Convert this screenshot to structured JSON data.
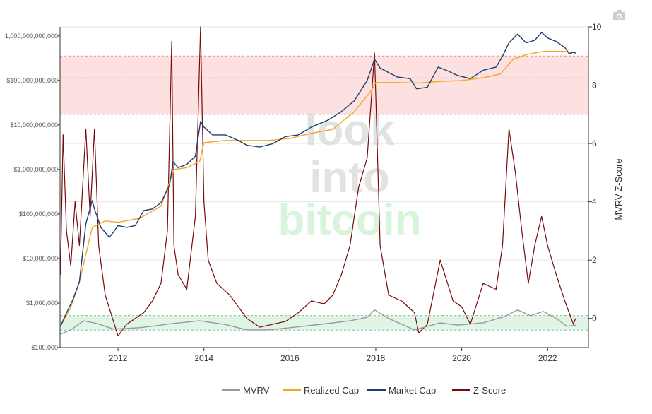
{
  "chart_data": {
    "type": "line",
    "title": "",
    "watermark": [
      "look",
      "into",
      "bitcoin"
    ],
    "left_axis": {
      "scale": "log",
      "unit": "USD",
      "ylim": [
        100000,
        1600000000000
      ],
      "ticks": [
        {
          "value": 100000,
          "label": "$100,000"
        },
        {
          "value": 1000000,
          "label": "$1,000,000"
        },
        {
          "value": 10000000,
          "label": "$10,000,000"
        },
        {
          "value": 100000000,
          "label": "$100,000,000"
        },
        {
          "value": 1000000000,
          "label": "$1,000,000,000"
        },
        {
          "value": 10000000000,
          "label": "$10,000,000,000"
        },
        {
          "value": 100000000000,
          "label": "$100,000,000,000"
        },
        {
          "value": 1000000000000,
          "label": "1,000,000,000,000"
        }
      ]
    },
    "right_axis": {
      "title": "MVRV Z-Score",
      "ylim": [
        -1,
        10
      ],
      "ticks": [
        {
          "value": 0,
          "label": "0"
        },
        {
          "value": 2,
          "label": "2"
        },
        {
          "value": 4,
          "label": "4"
        },
        {
          "value": 6,
          "label": "6"
        },
        {
          "value": 8,
          "label": "8"
        },
        {
          "value": 10,
          "label": "10"
        }
      ]
    },
    "x_axis": {
      "range": [
        2010.65,
        2022.95
      ],
      "ticks": [
        {
          "value": 2012,
          "label": "2012"
        },
        {
          "value": 2014,
          "label": "2014"
        },
        {
          "value": 2016,
          "label": "2016"
        },
        {
          "value": 2018,
          "label": "2018"
        },
        {
          "value": 2020,
          "label": "2020"
        },
        {
          "value": 2022,
          "label": "2022"
        }
      ]
    },
    "bands": [
      {
        "name": "overvalued",
        "z_from": 7,
        "z_to": 9,
        "color": "#fde0e0",
        "line_color": "#e88a8a",
        "mid_line": 8.25
      },
      {
        "name": "undervalued",
        "z_from": -0.4,
        "z_to": 0.1,
        "color": "#dff5e6",
        "line_color": "#7bc58f"
      }
    ],
    "legend": {
      "placement": "bottom-center",
      "items": [
        {
          "name": "MVRV",
          "color": "#999999"
        },
        {
          "name": "Realized Cap",
          "color": "#f5a623"
        },
        {
          "name": "Market Cap",
          "color": "#1c3f6e"
        },
        {
          "name": "Z-Score",
          "color": "#7a0a0a"
        }
      ]
    },
    "series": [
      {
        "name": "Market Cap",
        "axis": "left",
        "color": "#1c3f6e",
        "x": [
          2010.66,
          2010.8,
          2010.95,
          2011.1,
          2011.25,
          2011.4,
          2011.45,
          2011.6,
          2011.8,
          2011.9,
          2012.0,
          2012.2,
          2012.4,
          2012.6,
          2012.8,
          2013.0,
          2013.2,
          2013.28,
          2013.4,
          2013.6,
          2013.8,
          2013.92,
          2014.0,
          2014.2,
          2014.5,
          2014.8,
          2015.0,
          2015.3,
          2015.6,
          2015.9,
          2016.2,
          2016.5,
          2016.9,
          2017.2,
          2017.5,
          2017.8,
          2017.97,
          2018.1,
          2018.3,
          2018.5,
          2018.8,
          2018.95,
          2019.2,
          2019.45,
          2019.7,
          2019.9,
          2020.2,
          2020.5,
          2020.8,
          2020.95,
          2021.1,
          2021.3,
          2021.5,
          2021.7,
          2021.86,
          2022.0,
          2022.2,
          2022.4,
          2022.5,
          2022.6,
          2022.65
        ],
        "values": [
          300000,
          600000,
          1200000,
          3000000,
          60000000,
          200000000,
          130000000,
          50000000,
          30000000,
          40000000,
          55000000,
          50000000,
          55000000,
          120000000,
          130000000,
          180000000,
          450000000,
          1500000000,
          1100000000,
          1300000000,
          2000000000,
          12000000000,
          9000000000,
          6000000000,
          6000000000,
          4500000000,
          3500000000,
          3200000000,
          3800000000,
          5500000000,
          6000000000,
          9000000000,
          13000000000,
          20000000000,
          35000000000,
          100000000000,
          300000000000,
          190000000000,
          150000000000,
          120000000000,
          110000000000,
          65000000000,
          70000000000,
          200000000000,
          160000000000,
          130000000000,
          110000000000,
          170000000000,
          200000000000,
          350000000000,
          700000000000,
          1100000000000,
          700000000000,
          800000000000,
          1200000000000,
          900000000000,
          750000000000,
          550000000000,
          400000000000,
          430000000000,
          410000000000
        ]
      },
      {
        "name": "Realized Cap",
        "axis": "left",
        "color": "#f5a623",
        "x": [
          2010.66,
          2010.9,
          2011.1,
          2011.4,
          2011.7,
          2012.0,
          2012.5,
          2013.0,
          2013.3,
          2013.6,
          2013.9,
          2014.0,
          2014.5,
          2015.0,
          2015.5,
          2016.0,
          2016.5,
          2017.0,
          2017.5,
          2017.9,
          2018.0,
          2018.5,
          2019.0,
          2019.5,
          2020.0,
          2020.5,
          2020.9,
          2021.2,
          2021.5,
          2021.9,
          2022.1,
          2022.4,
          2022.5,
          2022.65
        ],
        "values": [
          300000,
          800000,
          3000000,
          50000000,
          70000000,
          65000000,
          80000000,
          150000000,
          1000000000,
          1100000000,
          1500000000,
          4000000000,
          4500000000,
          4500000000,
          4500000000,
          5000000000,
          6500000000,
          8000000000,
          20000000000,
          60000000000,
          90000000000,
          90000000000,
          88000000000,
          95000000000,
          100000000000,
          115000000000,
          140000000000,
          300000000000,
          380000000000,
          450000000000,
          450000000000,
          450000000000,
          430000000000,
          420000000000
        ]
      },
      {
        "name": "MVRV",
        "axis": "left",
        "color": "#999999",
        "x": [
          2010.66,
          2010.9,
          2011.2,
          2011.5,
          2011.9,
          2012.5,
          2013.0,
          2013.3,
          2013.9,
          2014.5,
          2015.0,
          2015.5,
          2016.0,
          2016.8,
          2017.4,
          2017.8,
          2017.97,
          2018.3,
          2018.9,
          2019.5,
          2019.9,
          2020.5,
          2021.0,
          2021.3,
          2021.6,
          2021.9,
          2022.2,
          2022.45,
          2022.65
        ],
        "values": [
          200000,
          250000,
          400000,
          350000,
          260000,
          280000,
          320000,
          350000,
          400000,
          330000,
          250000,
          250000,
          280000,
          340000,
          400000,
          480000,
          700000,
          450000,
          250000,
          360000,
          320000,
          360000,
          500000,
          700000,
          520000,
          650000,
          450000,
          300000,
          320000
        ]
      },
      {
        "name": "Z-Score",
        "axis": "right",
        "color": "#7a0a0a",
        "x": [
          2010.66,
          2010.72,
          2010.8,
          2010.9,
          2011.0,
          2011.1,
          2011.25,
          2011.35,
          2011.45,
          2011.55,
          2011.7,
          2011.85,
          2012.0,
          2012.2,
          2012.4,
          2012.6,
          2012.8,
          2013.0,
          2013.15,
          2013.25,
          2013.3,
          2013.4,
          2013.6,
          2013.8,
          2013.92,
          2014.0,
          2014.1,
          2014.3,
          2014.6,
          2014.9,
          2015.0,
          2015.3,
          2015.6,
          2015.9,
          2016.2,
          2016.5,
          2016.8,
          2017.0,
          2017.2,
          2017.4,
          2017.6,
          2017.8,
          2017.97,
          2018.1,
          2018.3,
          2018.6,
          2018.9,
          2019.0,
          2019.2,
          2019.5,
          2019.8,
          2020.0,
          2020.2,
          2020.5,
          2020.8,
          2020.95,
          2021.1,
          2021.25,
          2021.4,
          2021.55,
          2021.7,
          2021.86,
          2022.0,
          2022.2,
          2022.4,
          2022.5,
          2022.6,
          2022.65
        ],
        "values": [
          1.5,
          6.3,
          3.0,
          1.8,
          4.0,
          2.5,
          6.5,
          3.5,
          6.5,
          2.5,
          0.8,
          0.1,
          -0.6,
          -0.2,
          0.0,
          0.2,
          0.6,
          1.2,
          3.0,
          9.5,
          2.5,
          1.5,
          1.0,
          3.5,
          10.0,
          4.0,
          2.0,
          1.2,
          0.8,
          0.2,
          0.0,
          -0.3,
          -0.2,
          -0.1,
          0.2,
          0.6,
          0.5,
          0.8,
          1.5,
          2.5,
          4.5,
          5.5,
          9.1,
          2.5,
          0.8,
          0.6,
          0.2,
          -0.5,
          -0.2,
          2.0,
          0.6,
          0.4,
          -0.2,
          1.2,
          1.0,
          2.5,
          6.5,
          5.0,
          3.0,
          1.2,
          2.5,
          3.5,
          2.5,
          1.5,
          0.6,
          0.2,
          -0.2,
          0.0
        ]
      }
    ]
  }
}
